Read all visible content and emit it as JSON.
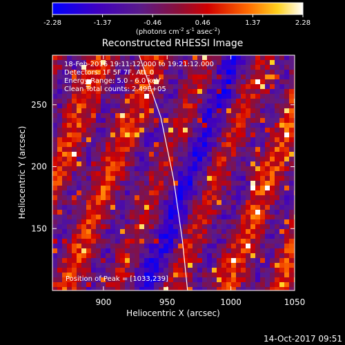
{
  "colorbar": {
    "ticks": [
      "-2.28",
      "-1.37",
      "-0.46",
      "0.46",
      "1.37",
      "2.28"
    ],
    "units_prefix": "(photons cm",
    "units_exp1": "-2",
    "units_mid": " s",
    "units_exp2": "-1",
    "units_mid2": " asec",
    "units_exp3": "-2",
    "units_suffix": ")"
  },
  "annotations": {
    "time_range": "18-Feb-2016 19:11:12.000 to 19:21:12.000",
    "detectors": "Detectors: 1F 5F 7F, Att_0",
    "energy": "Energy Range: 5.0 - 6.0 keV",
    "clean": "Clean    Total counts: 2.49E+05",
    "peak": "Position of Peak = [1033,239]"
  },
  "footer": {
    "timestamp": "14-Oct-2017 09:51"
  },
  "colors": {
    "background": "#000000",
    "limb": "#ffffff"
  },
  "chart_data": {
    "type": "heatmap",
    "title": "Reconstructed RHESSI Image",
    "xlabel": "Heliocentric X (arcsec)",
    "ylabel": "Heliocentric Y (arcsec)",
    "xlim": [
      860,
      1050
    ],
    "ylim": [
      100,
      290
    ],
    "xticks": [
      900,
      950,
      1000,
      1050
    ],
    "yticks": [
      150,
      200,
      250
    ],
    "colorscale": {
      "min": -2.28,
      "max": 2.28,
      "map": "blue-purple-red-yellow-white"
    },
    "limb_curve": [
      [
        928,
        290
      ],
      [
        945,
        240
      ],
      [
        955,
        190
      ],
      [
        962,
        140
      ],
      [
        966,
        100
      ]
    ],
    "peak": [
      1033,
      239
    ]
  }
}
